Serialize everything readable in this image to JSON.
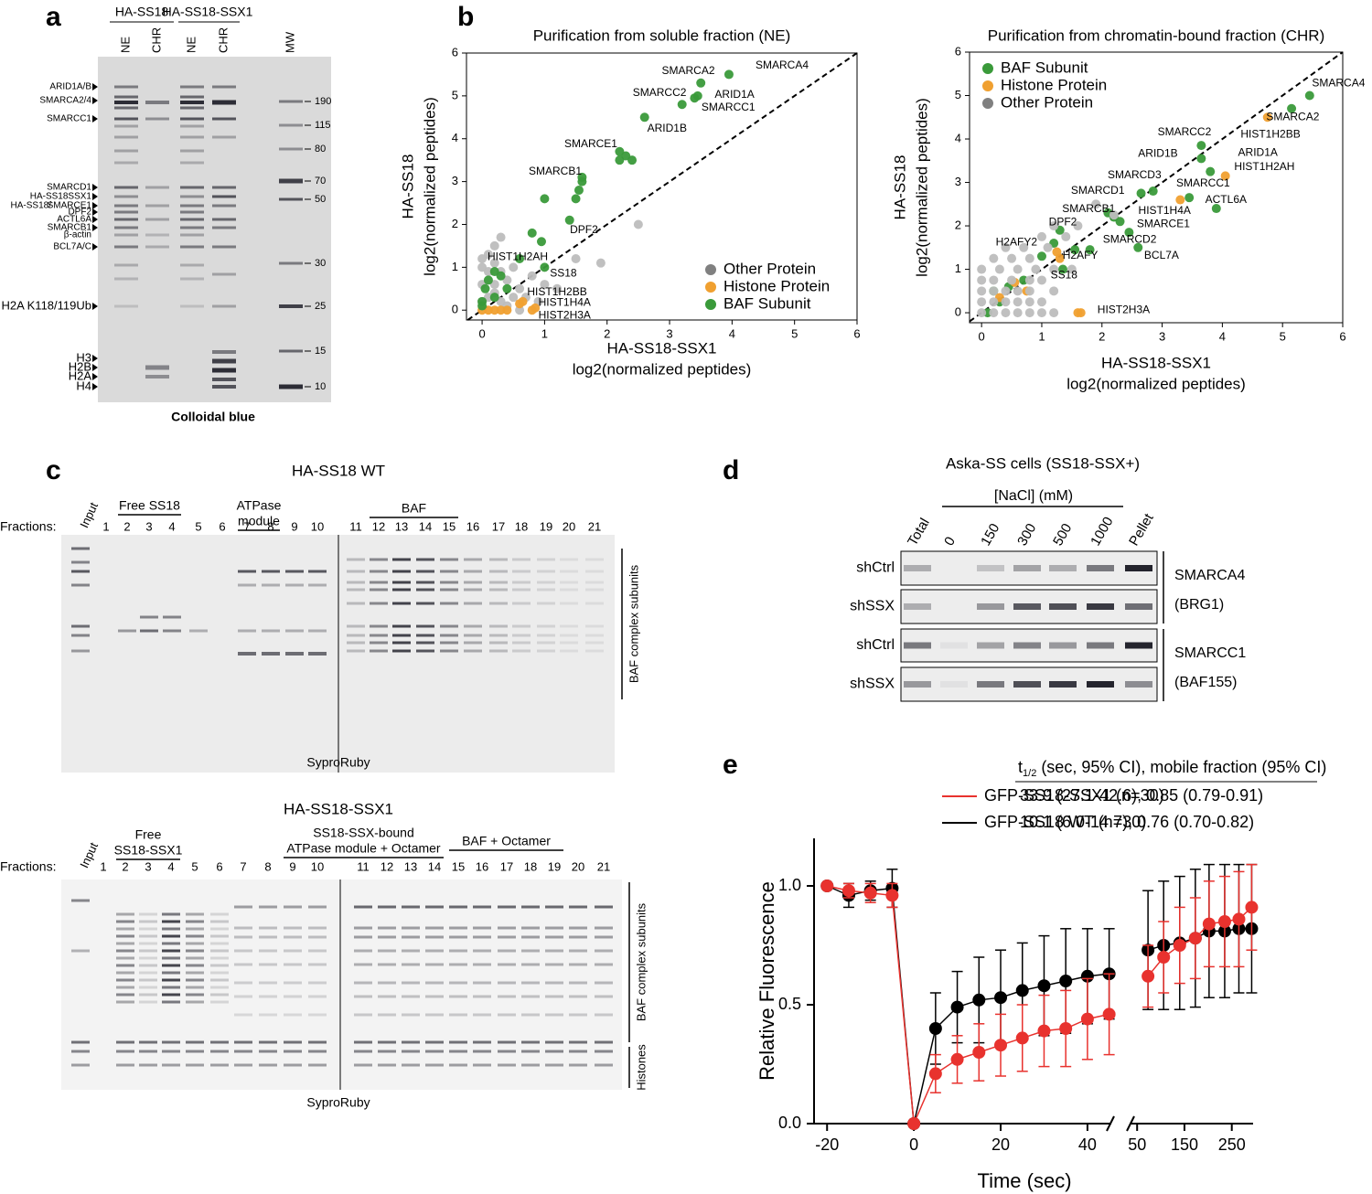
{
  "panel_labels": [
    "a",
    "b",
    "c",
    "d",
    "e"
  ],
  "panel_a": {
    "headers": [
      "HA-SS18",
      "HA-SS18-SSX1"
    ],
    "lanes": [
      "NE",
      "CHR",
      "NE",
      "CHR",
      "MW"
    ],
    "left_labels": [
      {
        "text": "ARID1A/B",
        "color": "#000000"
      },
      {
        "text": "SMARCA2/4",
        "color": "#2e9e48"
      },
      {
        "text": "SMARCC1",
        "color": "#000000"
      },
      {
        "text": "SMARCD1",
        "color": "#000000"
      },
      {
        "text": "HA-SS18SSX1",
        "color": "#2e9e48"
      },
      {
        "text": "HA-SS18/",
        "color": "#2e9e48"
      },
      {
        "text": "SMARCE1",
        "color": "#000000"
      },
      {
        "text": "DPF2",
        "color": "#000000"
      },
      {
        "text": "ACTL6A",
        "color": "#2e9e48"
      },
      {
        "text": "SMARCB1",
        "color": "#000000"
      },
      {
        "text": "β-actin",
        "color": "#2e9e48"
      },
      {
        "text": "BCL7A/C",
        "color": "#2e9e48"
      },
      {
        "text": "H2A K118/119Ub",
        "color": "#f07020"
      },
      {
        "text": "H3",
        "color": "#f07020"
      },
      {
        "text": "H2B",
        "color": "#f07020"
      },
      {
        "text": "H2A",
        "color": "#f07020"
      },
      {
        "text": "H4",
        "color": "#f07020"
      }
    ],
    "mw": [
      "190",
      "115",
      "80",
      "70",
      "50",
      "30",
      "25",
      "15",
      "10"
    ],
    "caption": "Colloidal blue"
  },
  "chart_data": [
    {
      "type": "scatter",
      "title": "Purification from soluble fraction (NE)",
      "xlabel": [
        "HA-SS18-SSX1",
        "log2(normalized peptides)"
      ],
      "ylabel": [
        "HA-SS18",
        "log2(normalized peptides)"
      ],
      "xlim": [
        -0.25,
        6
      ],
      "ylim": [
        -0.23,
        6
      ],
      "xticks": [
        0,
        1,
        2,
        3,
        4,
        5,
        6
      ],
      "yticks": [
        0,
        1,
        2,
        3,
        4,
        5,
        6
      ],
      "diagonal": true,
      "legend": "lower right",
      "series": [
        {
          "name": "Other Protein",
          "color": "#bdbdbd",
          "x": [
            0,
            0.1,
            0.2,
            0.3,
            0,
            0.1,
            0.2,
            0.4,
            0.5,
            0,
            0.2,
            0.3,
            0.6,
            0.8,
            0.1,
            0.3,
            0.5,
            1.0,
            1.2,
            0.7,
            0,
            0.2,
            1.5,
            1.9,
            2.5,
            0.4,
            0.6,
            0.9
          ],
          "values": [
            0.2,
            0.3,
            0.4,
            0.2,
            0.6,
            0.9,
            1.1,
            0.7,
            0.3,
            1.2,
            1.5,
            1.7,
            0.5,
            0.8,
            1.3,
            0.9,
            1.0,
            0.6,
            0.5,
            0.3,
            1.0,
            0.6,
            1.2,
            1.1,
            2.0,
            0.1,
            0.0,
            0.2
          ]
        },
        {
          "name": "Histone Protein",
          "color": "#f0a030",
          "x": [
            0.0,
            0.1,
            0.2,
            0.3,
            0.4,
            0.6,
            0.65,
            0.8,
            0.85
          ],
          "values": [
            0,
            0,
            0,
            0,
            0,
            0.15,
            0.2,
            0,
            0.05
          ]
        },
        {
          "name": "BAF Subunit",
          "color": "#3a9a3a",
          "x": [
            3.95,
            3.5,
            3.45,
            3.4,
            3.2,
            2.6,
            2.2,
            2.2,
            2.4,
            2.3,
            1.6,
            1.6,
            1.0,
            1.5,
            1.55,
            1.4,
            0.8,
            0.95,
            0.6,
            1.0,
            0.2,
            0.3,
            0.1,
            0.05,
            0.2,
            0.4,
            0.0,
            0.0
          ],
          "values": [
            5.5,
            5.3,
            5.0,
            4.95,
            4.8,
            4.5,
            3.7,
            3.5,
            3.5,
            3.6,
            3.1,
            3.0,
            2.6,
            2.6,
            2.8,
            2.1,
            1.8,
            1.6,
            1.2,
            1.0,
            0.9,
            0.8,
            0.7,
            0.5,
            0.3,
            0.5,
            0.2,
            0.1
          ]
        }
      ],
      "annotations": [
        {
          "text": "SMARCA4",
          "x": 4.8,
          "y": 5.7
        },
        {
          "text": "SMARCA2",
          "x": 3.3,
          "y": 5.58
        },
        {
          "text": "SMARCC2",
          "x": 2.84,
          "y": 5.06
        },
        {
          "text": "ARID1A",
          "x": 4.04,
          "y": 5.02
        },
        {
          "text": "SMARCC1",
          "x": 3.94,
          "y": 4.72
        },
        {
          "text": "ARID1B",
          "x": 2.96,
          "y": 4.23
        },
        {
          "text": "SMARCE1",
          "x": 1.74,
          "y": 3.87
        },
        {
          "text": "SMARCB1",
          "x": 1.17,
          "y": 3.23
        },
        {
          "text": "DPF2",
          "x": 1.63,
          "y": 1.86
        },
        {
          "text": "HIST1H2AH",
          "x": 0.57,
          "y": 1.24
        },
        {
          "text": "SS18",
          "x": 1.3,
          "y": 0.85
        },
        {
          "text": "HIST1H2BB",
          "x": 1.2,
          "y": 0.41
        },
        {
          "text": "HIST1H4A",
          "x": 1.32,
          "y": 0.17
        },
        {
          "text": "HIST2H3A",
          "x": 1.32,
          "y": -0.13
        }
      ]
    },
    {
      "type": "scatter",
      "title": "Purification from chromatin-bound fraction (CHR)",
      "xlabel": [
        "HA-SS18-SSX1",
        "log2(normalized peptides)"
      ],
      "ylabel": [
        "HA-SS18",
        "log2(normalized peptides)"
      ],
      "xlim": [
        -0.2,
        6
      ],
      "ylim": [
        -0.23,
        6
      ],
      "xticks": [
        0,
        1,
        2,
        3,
        4,
        5,
        6
      ],
      "yticks": [
        0,
        1,
        2,
        3,
        4,
        5,
        6
      ],
      "diagonal": true,
      "legend": "upper left",
      "series": [
        {
          "name": "BAF Subunit",
          "color": "#3a9a3a",
          "x": [
            5.45,
            5.15,
            3.65,
            3.65,
            3.8,
            2.85,
            2.65,
            3.45,
            3.9,
            2.1,
            2.2,
            2.3,
            2.45,
            2.6,
            1.3,
            1.2,
            1.55,
            1.0,
            0.7,
            0.45,
            0.2,
            0.1,
            0.3,
            1.35,
            1.8
          ],
          "values": [
            5.0,
            4.7,
            3.85,
            3.55,
            3.25,
            2.8,
            2.75,
            2.65,
            2.4,
            2.3,
            2.2,
            2.1,
            1.85,
            1.5,
            1.9,
            1.6,
            1.45,
            1.3,
            0.75,
            0.6,
            0.5,
            0,
            0.25,
            1.0,
            1.45
          ]
        },
        {
          "name": "Histone Protein",
          "color": "#f0a030",
          "x": [
            4.75,
            4.05,
            3.3,
            1.25,
            1.3,
            0.55,
            0.75,
            0.3,
            1.6,
            1.65
          ],
          "values": [
            4.5,
            3.15,
            2.6,
            1.4,
            1.25,
            0.7,
            0.5,
            0.35,
            0,
            0
          ]
        },
        {
          "name": "Other Protein",
          "color": "#bdbdbd",
          "x": [
            0,
            0.2,
            0.4,
            0.6,
            0.8,
            1.0,
            1.2,
            0,
            0.2,
            0.4,
            0.6,
            0.8,
            1.0,
            0,
            0.2,
            0.4,
            0.6,
            0.8,
            1.2,
            0,
            0.2,
            0.5,
            0.8,
            1.0,
            0,
            0.3,
            0.6,
            0.9,
            1.2,
            0.2,
            0.5,
            0.8,
            1.1,
            0.7,
            1.4,
            1.0,
            1.6,
            1.2,
            1.9,
            2.2,
            0.4,
            1.5
          ],
          "values": [
            0,
            0,
            0,
            0,
            0,
            0,
            0,
            0.25,
            0.25,
            0.25,
            0.25,
            0.25,
            0.25,
            0.5,
            0.5,
            0.5,
            0.5,
            0.5,
            0.5,
            0.75,
            0.75,
            0.75,
            0.75,
            0.75,
            1.0,
            1.0,
            1.0,
            1.0,
            1.0,
            1.25,
            1.25,
            1.25,
            1.5,
            1.5,
            1.75,
            1.75,
            2.0,
            2.0,
            2.5,
            2.25,
            1.5,
            1.0
          ]
        }
      ],
      "annotations": [
        {
          "text": "SMARCA4",
          "x": 5.93,
          "y": 5.28
        },
        {
          "text": "SMARCA2",
          "x": 5.17,
          "y": 4.5
        },
        {
          "text": "HIST1H2BB",
          "x": 4.8,
          "y": 4.1
        },
        {
          "text": "SMARCC2",
          "x": 3.37,
          "y": 4.15
        },
        {
          "text": "ARID1B",
          "x": 2.93,
          "y": 3.66
        },
        {
          "text": "ARID1A",
          "x": 4.59,
          "y": 3.68
        },
        {
          "text": "HIST1H2AH",
          "x": 4.7,
          "y": 3.35
        },
        {
          "text": "SMARCD3",
          "x": 2.54,
          "y": 3.16
        },
        {
          "text": "SMARCC1",
          "x": 3.68,
          "y": 2.97
        },
        {
          "text": "SMARCD1",
          "x": 1.93,
          "y": 2.8
        },
        {
          "text": "ACTL6A",
          "x": 4.06,
          "y": 2.59
        },
        {
          "text": "SMARCB1",
          "x": 1.78,
          "y": 2.38
        },
        {
          "text": "HIST1H4A",
          "x": 3.04,
          "y": 2.34
        },
        {
          "text": "SMARCE1",
          "x": 3.02,
          "y": 2.04
        },
        {
          "text": "DPF2",
          "x": 1.35,
          "y": 2.08
        },
        {
          "text": "SMARCD2",
          "x": 2.46,
          "y": 1.68
        },
        {
          "text": "H2AFY2",
          "x": 0.58,
          "y": 1.62
        },
        {
          "text": "H2AFY",
          "x": 1.64,
          "y": 1.31
        },
        {
          "text": "BCL7A",
          "x": 2.99,
          "y": 1.31
        },
        {
          "text": "SS18",
          "x": 1.37,
          "y": 0.86
        },
        {
          "text": "HIST2H3A",
          "x": 2.36,
          "y": 0.06
        }
      ]
    },
    {
      "type": "line",
      "legend_header": {
        "t": "t",
        "sub": "1/2",
        "rest": "(sec, 95% CI), mobile fraction (95% CI)"
      },
      "ylabel": "Relative Fluorescence",
      "xlabel": "Time (sec)",
      "xlim": [
        [
          -23,
          45.5
        ],
        [
          38,
          295
        ]
      ],
      "xticks": [
        -20,
        0,
        20,
        40,
        50,
        150,
        250
      ],
      "ylim": [
        0,
        1.2
      ],
      "yticks": [
        {
          "value": 0,
          "label": "0.0"
        },
        {
          "value": 0.5,
          "label": "0.5"
        },
        {
          "value": 1,
          "label": "1.0"
        }
      ],
      "x": [
        -20,
        -15,
        -10,
        -5,
        0,
        5,
        10,
        15,
        20,
        25,
        30,
        35,
        40,
        45,
        null,
        73,
        106,
        140,
        173,
        202,
        235,
        265,
        292
      ],
      "series": [
        {
          "name": "GFP-SS18-SSX1 (n=30)",
          "stats": "33.9 (27.1-42.6), 0.85 (0.79-0.91)",
          "color": "#e8322e",
          "values": [
            1.0,
            0.98,
            0.97,
            0.96,
            0,
            0.21,
            0.27,
            0.3,
            0.33,
            0.36,
            0.39,
            0.4,
            0.44,
            0.46,
            null,
            0.62,
            0.7,
            0.75,
            0.78,
            0.84,
            0.85,
            0.86,
            0.91
          ],
          "errors": [
            0,
            0.03,
            0.04,
            0.05,
            0,
            0.08,
            0.1,
            0.12,
            0.13,
            0.14,
            0.15,
            0.16,
            0.17,
            0.17,
            null,
            0.13,
            0.15,
            0.16,
            0.17,
            0.18,
            0.19,
            0.2,
            0.18
          ]
        },
        {
          "name": "GFP-SS18 WT (n=30)",
          "stats": "10.1 (6.0-14.7), 0.76 (0.70-0.82)",
          "color": "#000000",
          "values": [
            1.0,
            0.96,
            0.98,
            0.99,
            0,
            0.4,
            0.49,
            0.52,
            0.53,
            0.56,
            0.58,
            0.6,
            0.62,
            0.63,
            null,
            0.73,
            0.75,
            0.76,
            0.78,
            0.81,
            0.81,
            0.82,
            0.82
          ],
          "errors": [
            0,
            0.05,
            0.04,
            0.08,
            0,
            0.15,
            0.15,
            0.18,
            0.2,
            0.2,
            0.21,
            0.22,
            0.2,
            0.19,
            null,
            0.25,
            0.27,
            0.28,
            0.29,
            0.28,
            0.28,
            0.27,
            0.27
          ]
        }
      ]
    }
  ],
  "panel_c": {
    "top": {
      "title": "HA-SS18 WT",
      "fractions_label": "Fractions:",
      "input": "Input",
      "fractions": [
        "1",
        "2",
        "3",
        "4",
        "5",
        "6",
        "7",
        "8",
        "9",
        "10",
        "11",
        "12",
        "13",
        "14",
        "15",
        "16",
        "17",
        "18",
        "19",
        "20",
        "21"
      ],
      "groups": [
        [
          "Free SS18"
        ],
        [
          "ATPase",
          "module"
        ],
        [
          "BAF"
        ]
      ],
      "side": [
        "BAF complex subunits"
      ],
      "caption": "SyproRuby"
    },
    "bottom": {
      "title": "HA-SS18-SSX1",
      "fractions_label": "Fractions:",
      "input": "Input",
      "fractions": [
        "1",
        "2",
        "3",
        "4",
        "5",
        "6",
        "7",
        "8",
        "9",
        "10",
        "11",
        "12",
        "13",
        "14",
        "15",
        "16",
        "17",
        "18",
        "19",
        "20",
        "21"
      ],
      "groups": [
        [
          "Free",
          "SS18-SSX1"
        ],
        [
          "SS18-SSX-bound",
          "ATPase module + Octamer"
        ],
        [
          "BAF + Octamer"
        ]
      ],
      "side": [
        "BAF complex subunits",
        "Histones"
      ],
      "caption": "SyproRuby"
    }
  },
  "panel_d": {
    "title": "Aska-SS cells (SS18-SSX+)",
    "conc_label": "[NaCl] (mM)",
    "columns": [
      "Total",
      "0",
      "150",
      "300",
      "500",
      "1000",
      "Pellet"
    ],
    "rows": [
      "shCtrl",
      "shSSX",
      "shCtrl",
      "shSSX"
    ],
    "targets": [
      [
        "SMARCA4",
        "(BRG1)"
      ],
      [
        "SMARCC1",
        "(BAF155)"
      ]
    ]
  }
}
